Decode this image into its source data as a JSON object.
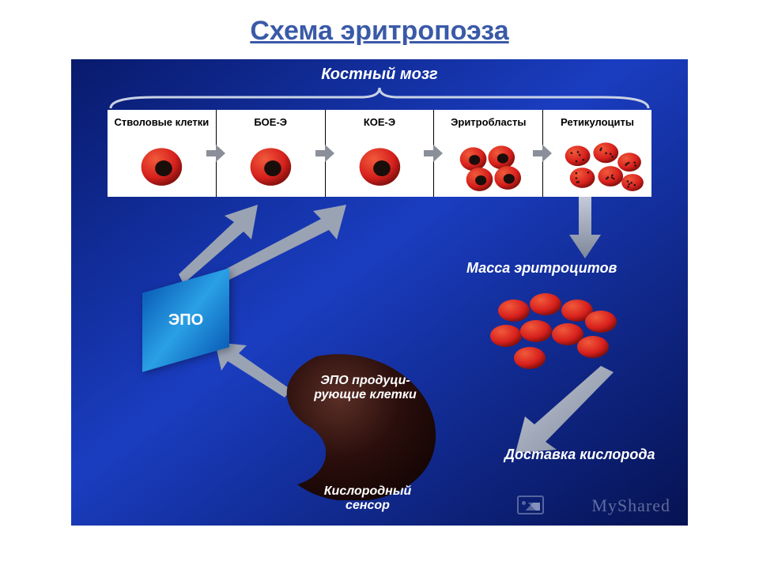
{
  "title": {
    "text": "Схема эритропоэза",
    "color": "#3a5aa8"
  },
  "diagram": {
    "background_gradient": [
      "#0a1f8a",
      "#1436b4",
      "#0a1f8a"
    ],
    "bone_marrow_label": "Костный мозг",
    "brace_color": "#c9d2e6",
    "stages": [
      {
        "label": "Стволовые клетки",
        "type": "single_nucleated"
      },
      {
        "label": "БОЕ-Э",
        "type": "single_nucleated"
      },
      {
        "label": "КОЕ-Э",
        "type": "single_nucleated"
      },
      {
        "label": "Эритробласты",
        "type": "cluster_nucleated"
      },
      {
        "label": "Ретикулоциты",
        "type": "cluster_stippled"
      }
    ],
    "stage_strip_bg": "#ffffff",
    "stage_arrow_color": "#8a8f99",
    "cell_colors": {
      "cytoplasm": "#d7201d",
      "cytoplasm_hl": "#f05a3a",
      "nucleus": "#1a0e0a",
      "stipple": "#2a1410"
    },
    "epo_box": {
      "label": "ЭПО",
      "gradient": [
        "#0b5fb8",
        "#2aa0e6",
        "#0b5fb8"
      ]
    },
    "kidney": {
      "fill": "#2a0e0c",
      "highlight": "#4a241e",
      "top_label": "ЭПО продуци-рующие клетки",
      "bottom_label": "Кислородный сенсор"
    },
    "rbc_mass_label": "Масса эритроцитов",
    "o2_delivery_label": "Доставка кислорода",
    "arrow_color": "#9aa3b4",
    "watermark": "MyShared"
  }
}
